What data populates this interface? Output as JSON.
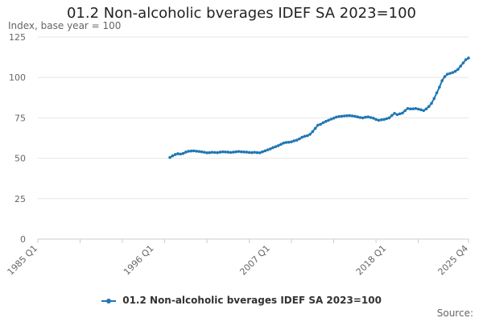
{
  "title": "01.2 Non-alcoholic bverages IDEF SA 2023=100",
  "source_label": "Source:",
  "colors": {
    "series": "#1f77b4",
    "grid": "#e6e6e6",
    "axis": "#cccccc"
  },
  "chart_data": {
    "type": "line",
    "title": "01.2 Non-alcoholic bverages IDEF SA 2023=100",
    "ylabel": "Index, base year = 100",
    "xlabel": "",
    "xlim": [
      "1985 Q1",
      "2025 Q4"
    ],
    "ylim": [
      0,
      125
    ],
    "y_ticks": [
      0,
      25,
      50,
      75,
      100,
      125
    ],
    "x_ticks": [
      "1985 Q1",
      "1996 Q1",
      "2007 Q1",
      "2018 Q1",
      "2025 Q4"
    ],
    "grid": true,
    "legend_position": "bottom",
    "series": [
      {
        "name": "01.2 Non-alcoholic bverages IDEF SA 2023=100",
        "points": [
          [
            "1997 Q3",
            50.5
          ],
          [
            "1997 Q4",
            51.5
          ],
          [
            "1998 Q1",
            52.3
          ],
          [
            "1998 Q2",
            52.8
          ],
          [
            "1998 Q3",
            52.6
          ],
          [
            "1998 Q4",
            53.0
          ],
          [
            "1999 Q1",
            53.8
          ],
          [
            "1999 Q2",
            54.3
          ],
          [
            "1999 Q3",
            54.5
          ],
          [
            "1999 Q4",
            54.6
          ],
          [
            "2000 Q1",
            54.4
          ],
          [
            "2000 Q2",
            54.2
          ],
          [
            "2000 Q3",
            54.0
          ],
          [
            "2000 Q4",
            53.7
          ],
          [
            "2001 Q1",
            53.4
          ],
          [
            "2001 Q2",
            53.5
          ],
          [
            "2001 Q3",
            53.7
          ],
          [
            "2001 Q4",
            53.6
          ],
          [
            "2002 Q1",
            53.5
          ],
          [
            "2002 Q2",
            53.8
          ],
          [
            "2002 Q3",
            54.0
          ],
          [
            "2002 Q4",
            53.9
          ],
          [
            "2003 Q1",
            53.8
          ],
          [
            "2003 Q2",
            53.6
          ],
          [
            "2003 Q3",
            53.8
          ],
          [
            "2003 Q4",
            54.0
          ],
          [
            "2004 Q1",
            54.2
          ],
          [
            "2004 Q2",
            54.0
          ],
          [
            "2004 Q3",
            53.9
          ],
          [
            "2004 Q4",
            53.8
          ],
          [
            "2005 Q1",
            53.6
          ],
          [
            "2005 Q2",
            53.5
          ],
          [
            "2005 Q3",
            53.7
          ],
          [
            "2005 Q4",
            53.5
          ],
          [
            "2006 Q1",
            53.4
          ],
          [
            "2006 Q2",
            54.0
          ],
          [
            "2006 Q3",
            54.6
          ],
          [
            "2006 Q4",
            55.2
          ],
          [
            "2007 Q1",
            55.8
          ],
          [
            "2007 Q2",
            56.6
          ],
          [
            "2007 Q3",
            57.2
          ],
          [
            "2007 Q4",
            57.8
          ],
          [
            "2008 Q1",
            58.6
          ],
          [
            "2008 Q2",
            59.4
          ],
          [
            "2008 Q3",
            59.8
          ],
          [
            "2008 Q4",
            59.9
          ],
          [
            "2009 Q1",
            60.2
          ],
          [
            "2009 Q2",
            60.8
          ],
          [
            "2009 Q3",
            61.2
          ],
          [
            "2009 Q4",
            62.0
          ],
          [
            "2010 Q1",
            63.0
          ],
          [
            "2010 Q2",
            63.6
          ],
          [
            "2010 Q3",
            64.0
          ],
          [
            "2010 Q4",
            64.8
          ],
          [
            "2011 Q1",
            66.5
          ],
          [
            "2011 Q2",
            68.5
          ],
          [
            "2011 Q3",
            70.5
          ],
          [
            "2011 Q4",
            71.0
          ],
          [
            "2012 Q1",
            72.0
          ],
          [
            "2012 Q2",
            72.8
          ],
          [
            "2012 Q3",
            73.5
          ],
          [
            "2012 Q4",
            74.2
          ],
          [
            "2013 Q1",
            74.8
          ],
          [
            "2013 Q2",
            75.5
          ],
          [
            "2013 Q3",
            75.8
          ],
          [
            "2013 Q4",
            76.0
          ],
          [
            "2014 Q1",
            76.2
          ],
          [
            "2014 Q2",
            76.3
          ],
          [
            "2014 Q3",
            76.4
          ],
          [
            "2014 Q4",
            76.2
          ],
          [
            "2015 Q1",
            76.0
          ],
          [
            "2015 Q2",
            75.6
          ],
          [
            "2015 Q3",
            75.2
          ],
          [
            "2015 Q4",
            75.0
          ],
          [
            "2016 Q1",
            75.4
          ],
          [
            "2016 Q2",
            75.6
          ],
          [
            "2016 Q3",
            75.2
          ],
          [
            "2016 Q4",
            74.8
          ],
          [
            "2017 Q1",
            74.0
          ],
          [
            "2017 Q2",
            73.5
          ],
          [
            "2017 Q3",
            73.8
          ],
          [
            "2017 Q4",
            74.0
          ],
          [
            "2018 Q1",
            74.5
          ],
          [
            "2018 Q2",
            75.0
          ],
          [
            "2018 Q3",
            76.5
          ],
          [
            "2018 Q4",
            77.8
          ],
          [
            "2019 Q1",
            77.0
          ],
          [
            "2019 Q2",
            77.5
          ],
          [
            "2019 Q3",
            78.0
          ],
          [
            "2019 Q4",
            79.5
          ],
          [
            "2020 Q1",
            80.8
          ],
          [
            "2020 Q2",
            80.5
          ],
          [
            "2020 Q3",
            80.6
          ],
          [
            "2020 Q4",
            80.8
          ],
          [
            "2021 Q1",
            80.4
          ],
          [
            "2021 Q2",
            80.0
          ],
          [
            "2021 Q3",
            79.5
          ],
          [
            "2021 Q4",
            80.5
          ],
          [
            "2022 Q1",
            82.0
          ],
          [
            "2022 Q2",
            84.0
          ],
          [
            "2022 Q3",
            87.0
          ],
          [
            "2022 Q4",
            90.5
          ],
          [
            "2023 Q1",
            94.0
          ],
          [
            "2023 Q2",
            98.0
          ],
          [
            "2023 Q3",
            100.5
          ],
          [
            "2023 Q4",
            102.0
          ],
          [
            "2024 Q1",
            102.5
          ],
          [
            "2024 Q2",
            103.0
          ],
          [
            "2024 Q3",
            103.8
          ],
          [
            "2024 Q4",
            105.0
          ],
          [
            "2025 Q1",
            107.0
          ],
          [
            "2025 Q2",
            109.0
          ],
          [
            "2025 Q3",
            111.0
          ],
          [
            "2025 Q4",
            112.0
          ]
        ]
      }
    ]
  }
}
